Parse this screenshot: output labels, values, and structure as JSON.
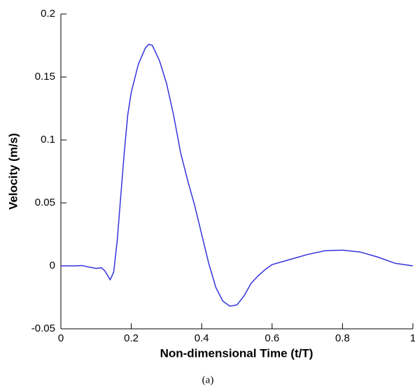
{
  "chart_data": {
    "type": "line",
    "caption": "(a)",
    "x_label": "Non-dimensional Time (t/T)",
    "y_label": "Velocity (m/s)",
    "x": [
      0,
      0.02,
      0.04,
      0.06,
      0.08,
      0.1,
      0.115,
      0.125,
      0.14,
      0.15,
      0.16,
      0.17,
      0.18,
      0.19,
      0.2,
      0.22,
      0.24,
      0.25,
      0.26,
      0.28,
      0.3,
      0.32,
      0.34,
      0.36,
      0.38,
      0.4,
      0.42,
      0.44,
      0.46,
      0.48,
      0.5,
      0.52,
      0.54,
      0.56,
      0.58,
      0.6,
      0.65,
      0.7,
      0.75,
      0.8,
      0.85,
      0.9,
      0.95,
      1
    ],
    "series": [
      {
        "color": "#3333dd",
        "values": [
          0,
          0,
          0,
          0.0003,
          -0.001,
          -0.002,
          -0.0015,
          -0.004,
          -0.011,
          -0.005,
          0.02,
          0.055,
          0.09,
          0.12,
          0.138,
          0.16,
          0.173,
          0.176,
          0.175,
          0.163,
          0.145,
          0.12,
          0.09,
          0.068,
          0.048,
          0.025,
          0.002,
          -0.017,
          -0.028,
          -0.032,
          -0.031,
          -0.024,
          -0.014,
          -0.008,
          -0.003,
          0.001,
          0.005,
          0.009,
          0.012,
          0.0125,
          0.011,
          0.007,
          0.002,
          0
        ]
      }
    ],
    "xlim": [
      0,
      1
    ],
    "xticks": [
      0,
      0.2,
      0.4,
      0.6,
      0.8,
      1
    ],
    "ylim": [
      -0.05,
      0.2
    ],
    "yticks": [
      -0.05,
      0,
      0.05,
      0.1,
      0.15,
      0.2
    ]
  }
}
